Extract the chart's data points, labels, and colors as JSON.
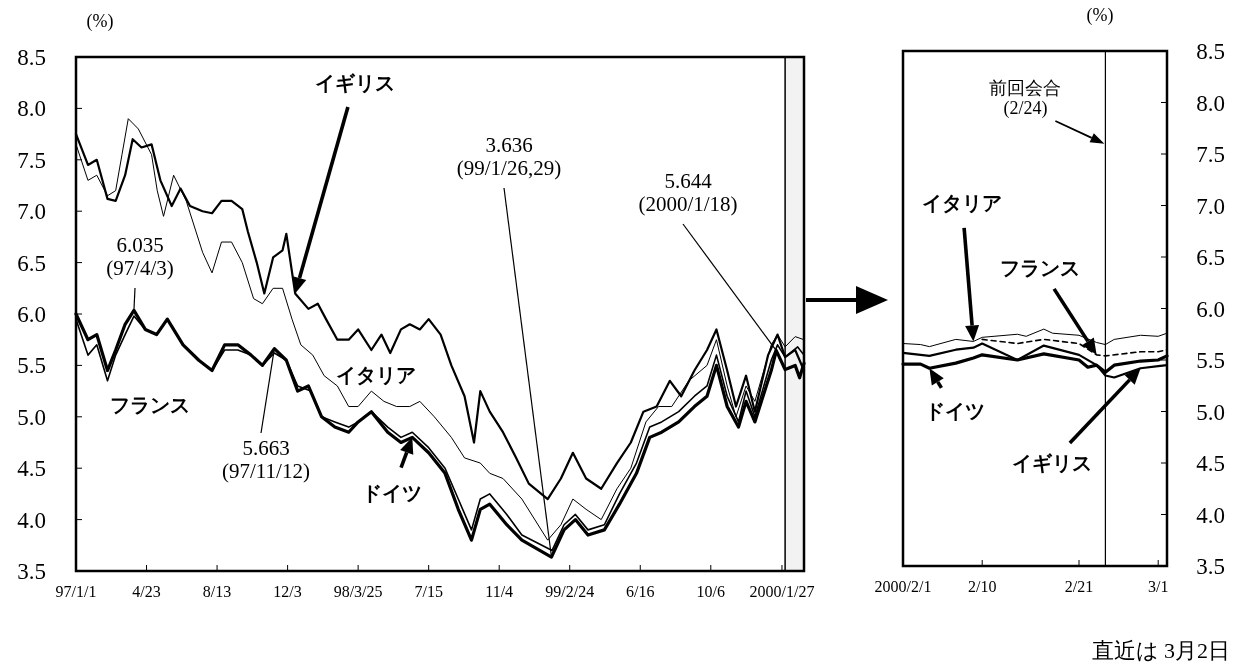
{
  "chart_data": [
    {
      "type": "line",
      "ylabel": "(%)",
      "xlim": [
        "1997-01-01",
        "2000-03-02"
      ],
      "ylim": [
        3.5,
        8.5
      ],
      "xticks": [
        {
          "value": "1997-01-01",
          "label": "97/1/1"
        },
        {
          "value": "1997-04-23",
          "label": "4/23"
        },
        {
          "value": "1997-08-13",
          "label": "8/13"
        },
        {
          "value": "1997-12-03",
          "label": "12/3"
        },
        {
          "value": "1998-03-25",
          "label": "98/3/25"
        },
        {
          "value": "1998-07-15",
          "label": "7/15"
        },
        {
          "value": "1998-11-04",
          "label": "11/4"
        },
        {
          "value": "1999-02-24",
          "label": "99/2/24"
        },
        {
          "value": "1999-06-16",
          "label": "6/16"
        },
        {
          "value": "1999-10-06",
          "label": "10/6"
        },
        {
          "value": "2000-01-27",
          "label": "2000/1/27"
        }
      ],
      "yticks": [
        3.5,
        {
          "value": 4,
          "label": "4.0"
        },
        4.5,
        {
          "value": 5,
          "label": "5.0"
        },
        5.5,
        {
          "value": 6,
          "label": "6.0"
        },
        6.5,
        {
          "value": 7,
          "label": "7.0"
        },
        7.5,
        {
          "value": 8,
          "label": "8.0"
        },
        8.5
      ],
      "grid": false,
      "bands": [
        {
          "axis": "x",
          "from": "2000-02-01",
          "to": "2000-03-02",
          "color": "#f2f2f2"
        }
      ],
      "annotations": [
        {
          "text": "6.035\n(97/4/3)",
          "x": "1997-04-03",
          "y": 6.035
        },
        {
          "text": "5.663\n(97/11/12)",
          "x": "1997-11-12",
          "y": 5.663
        },
        {
          "text": "3.636\n(99/1/26,29)",
          "x": "1999-01-26",
          "y": 3.636
        },
        {
          "text": "5.644\n(2000/1/18)",
          "x": "2000-01-18",
          "y": 5.644
        }
      ],
      "series": [
        {
          "name": "イギリス",
          "color": "#000000",
          "x": [
            "1997-01-01",
            "1997-01-20",
            "1997-02-03",
            "1997-02-20",
            "1997-03-05",
            "1997-03-20",
            "1997-04-01",
            "1997-04-15",
            "1997-05-01",
            "1997-05-15",
            "1997-06-02",
            "1997-06-16",
            "1997-07-01",
            "1997-07-21",
            "1997-08-05",
            "1997-08-20",
            "1997-09-05",
            "1997-09-22",
            "1997-10-01",
            "1997-10-15",
            "1997-10-27",
            "1997-11-10",
            "1997-11-25",
            "1997-12-01",
            "1997-12-15",
            "1998-01-05",
            "1998-01-20",
            "1998-02-02",
            "1998-02-20",
            "1998-03-10",
            "1998-03-25",
            "1998-04-15",
            "1998-05-01",
            "1998-05-15",
            "1998-06-01",
            "1998-06-15",
            "1998-07-01",
            "1998-07-15",
            "1998-08-03",
            "1998-08-20",
            "1998-09-10",
            "1998-09-25",
            "1998-10-05",
            "1998-10-20",
            "1998-11-10",
            "1998-12-01",
            "1998-12-21",
            "1999-01-20",
            "1999-02-10",
            "1999-03-01",
            "1999-03-22",
            "1999-04-15",
            "1999-05-10",
            "1999-06-01",
            "1999-06-21",
            "1999-07-12",
            "1999-08-02",
            "1999-08-20",
            "1999-09-10",
            "1999-09-30",
            "1999-10-15",
            "1999-11-01",
            "1999-11-15",
            "1999-12-01",
            "1999-12-15",
            "2000-01-05",
            "2000-01-20",
            "2000-02-01",
            "2000-02-17",
            "2000-03-02"
          ],
          "values": [
            7.75,
            7.45,
            7.5,
            7.12,
            7.1,
            7.35,
            7.7,
            7.62,
            7.65,
            7.3,
            7.05,
            7.22,
            7.05,
            7.0,
            6.98,
            7.1,
            7.1,
            7.02,
            6.8,
            6.5,
            6.2,
            6.55,
            6.62,
            6.78,
            6.2,
            6.05,
            6.1,
            5.95,
            5.75,
            5.75,
            5.85,
            5.65,
            5.8,
            5.62,
            5.85,
            5.9,
            5.85,
            5.95,
            5.8,
            5.5,
            5.2,
            4.75,
            5.25,
            5.05,
            4.85,
            4.6,
            4.35,
            4.2,
            4.4,
            4.65,
            4.4,
            4.3,
            4.55,
            4.75,
            5.05,
            5.1,
            5.35,
            5.2,
            5.45,
            5.65,
            5.85,
            5.45,
            5.1,
            5.4,
            5.05,
            5.6,
            5.8,
            5.58,
            5.65,
            5.45
          ]
        },
        {
          "name": "イタリア",
          "color": "#000000",
          "x": [
            "1997-01-01",
            "1997-01-20",
            "1997-02-03",
            "1997-02-20",
            "1997-03-05",
            "1997-03-15",
            "1997-03-25",
            "1997-04-10",
            "1997-05-01",
            "1997-05-10",
            "1997-05-20",
            "1997-06-05",
            "1997-06-25",
            "1997-07-21",
            "1997-08-05",
            "1997-08-20",
            "1997-09-05",
            "1997-09-22",
            "1997-10-10",
            "1997-10-24",
            "1997-11-10",
            "1997-11-25",
            "1997-12-10",
            "1997-12-24",
            "1998-01-12",
            "1998-01-30",
            "1998-02-20",
            "1998-03-10",
            "1998-03-25",
            "1998-04-15",
            "1998-05-05",
            "1998-05-25",
            "1998-06-15",
            "1998-07-01",
            "1998-07-24",
            "1998-08-20",
            "1998-09-10",
            "1998-10-05",
            "1998-10-20",
            "1998-11-10",
            "1998-12-10",
            "1999-01-20",
            "1999-02-10",
            "1999-03-01",
            "1999-03-22",
            "1999-04-15",
            "1999-05-10",
            "1999-06-01",
            "1999-06-25",
            "1999-07-15",
            "1999-08-05",
            "1999-09-01",
            "1999-09-30",
            "1999-10-15",
            "1999-11-01",
            "1999-11-15",
            "1999-12-01",
            "1999-12-15",
            "2000-01-10",
            "2000-01-20",
            "2000-02-01",
            "2000-02-17",
            "2000-03-02"
          ],
          "values": [
            7.65,
            7.3,
            7.35,
            7.15,
            7.2,
            7.55,
            7.9,
            7.8,
            7.55,
            7.2,
            6.95,
            7.35,
            7.1,
            6.6,
            6.4,
            6.7,
            6.7,
            6.5,
            6.15,
            6.1,
            6.25,
            6.25,
            5.95,
            5.7,
            5.6,
            5.4,
            5.3,
            5.1,
            5.1,
            5.25,
            5.15,
            5.1,
            5.1,
            5.15,
            5.0,
            4.8,
            4.6,
            4.55,
            4.45,
            4.4,
            4.2,
            3.8,
            3.95,
            4.2,
            4.1,
            4.0,
            4.3,
            4.5,
            4.95,
            5.1,
            5.1,
            5.35,
            5.5,
            5.75,
            5.3,
            5.0,
            5.3,
            5.15,
            5.7,
            5.8,
            5.68,
            5.78,
            5.75
          ]
        },
        {
          "name": "フランス",
          "color": "#000000",
          "x": [
            "1997-01-01",
            "1997-01-20",
            "1997-02-03",
            "1997-02-20",
            "1997-03-05",
            "1997-03-20",
            "1997-04-03",
            "1997-04-21",
            "1997-05-09",
            "1997-05-26",
            "1997-06-20",
            "1997-07-15",
            "1997-08-05",
            "1997-08-25",
            "1997-09-15",
            "1997-10-06",
            "1997-10-24",
            "1997-11-12",
            "1997-12-01",
            "1997-12-19",
            "1998-01-09",
            "1998-01-26",
            "1998-02-16",
            "1998-03-10",
            "1998-03-25",
            "1998-04-15",
            "1998-05-11",
            "1998-06-01",
            "1998-06-19",
            "1998-07-15",
            "1998-08-10",
            "1998-08-31",
            "1998-09-21",
            "1998-10-05",
            "1998-10-20",
            "1998-11-16",
            "1998-12-10",
            "1999-01-27",
            "1999-02-15",
            "1999-03-05",
            "1999-03-25",
            "1999-04-20",
            "1999-05-14",
            "1999-06-10",
            "1999-07-01",
            "1999-07-20",
            "1999-08-16",
            "1999-09-10",
            "1999-09-30",
            "1999-10-15",
            "1999-11-01",
            "1999-11-19",
            "1999-12-01",
            "1999-12-15",
            "2000-01-10",
            "2000-01-20",
            "2000-02-01",
            "2000-02-21",
            "2000-03-02"
          ],
          "values": [
            5.95,
            5.6,
            5.7,
            5.35,
            5.6,
            5.8,
            5.98,
            5.85,
            5.8,
            5.95,
            5.7,
            5.55,
            5.45,
            5.65,
            5.65,
            5.6,
            5.5,
            5.62,
            5.55,
            5.3,
            5.25,
            5.0,
            4.95,
            4.9,
            4.95,
            5.05,
            4.9,
            4.8,
            4.85,
            4.7,
            4.5,
            4.2,
            3.9,
            4.2,
            4.25,
            4.05,
            3.85,
            3.7,
            3.95,
            4.05,
            3.9,
            3.95,
            4.25,
            4.55,
            4.9,
            4.95,
            5.05,
            5.2,
            5.3,
            5.6,
            5.2,
            4.95,
            5.25,
            5.0,
            5.55,
            5.7,
            5.58,
            5.68,
            5.6
          ]
        },
        {
          "name": "ドイツ",
          "color": "#000000",
          "x": [
            "1997-01-01",
            "1997-01-20",
            "1997-02-03",
            "1997-02-20",
            "1997-03-05",
            "1997-03-20",
            "1997-04-03",
            "1997-04-21",
            "1997-05-09",
            "1997-05-26",
            "1997-06-20",
            "1997-07-15",
            "1997-08-05",
            "1997-08-25",
            "1997-09-15",
            "1997-10-06",
            "1997-10-24",
            "1997-11-12",
            "1997-12-01",
            "1997-12-19",
            "1998-01-05",
            "1998-01-26",
            "1998-02-16",
            "1998-03-10",
            "1998-03-25",
            "1998-04-15",
            "1998-05-11",
            "1998-06-01",
            "1998-06-19",
            "1998-07-15",
            "1998-08-10",
            "1998-08-31",
            "1998-09-21",
            "1998-10-05",
            "1998-10-20",
            "1998-11-16",
            "1998-12-10",
            "1999-01-26",
            "1999-02-15",
            "1999-03-05",
            "1999-03-25",
            "1999-04-20",
            "1999-05-14",
            "1999-06-10",
            "1999-07-01",
            "1999-07-20",
            "1999-08-16",
            "1999-09-10",
            "1999-09-30",
            "1999-10-15",
            "1999-11-01",
            "1999-11-19",
            "1999-12-01",
            "1999-12-15",
            "2000-01-10",
            "2000-01-18",
            "2000-02-01",
            "2000-02-17",
            "2000-02-24",
            "2000-03-02"
          ],
          "values": [
            6.0,
            5.75,
            5.8,
            5.45,
            5.65,
            5.9,
            6.035,
            5.85,
            5.8,
            5.95,
            5.7,
            5.55,
            5.45,
            5.7,
            5.7,
            5.6,
            5.5,
            5.663,
            5.55,
            5.25,
            5.3,
            5.0,
            4.9,
            4.85,
            4.95,
            5.05,
            4.85,
            4.75,
            4.8,
            4.65,
            4.45,
            4.1,
            3.8,
            4.1,
            4.15,
            3.95,
            3.8,
            3.636,
            3.9,
            4.0,
            3.85,
            3.9,
            4.15,
            4.45,
            4.8,
            4.85,
            4.95,
            5.1,
            5.2,
            5.5,
            5.1,
            4.9,
            5.15,
            4.95,
            5.45,
            5.644,
            5.46,
            5.5,
            5.38,
            5.52
          ]
        }
      ]
    },
    {
      "type": "line",
      "ylabel": "(%)",
      "xlim": [
        "2000-02-01",
        "2000-03-02"
      ],
      "ylim": [
        3.5,
        8.5
      ],
      "xticks": [
        {
          "value": "2000-02-01",
          "label": "2000/2/1"
        },
        {
          "value": "2000-02-10",
          "label": "2/10"
        },
        {
          "value": "2000-02-21",
          "label": "2/21"
        },
        {
          "value": "2000-03-01",
          "label": "3/1"
        }
      ],
      "yticks": [
        3.5,
        {
          "value": 4,
          "label": "4.0"
        },
        4.5,
        {
          "value": 5,
          "label": "5.0"
        },
        5.5,
        {
          "value": 6,
          "label": "6.0"
        },
        6.5,
        {
          "value": 7,
          "label": "7.0"
        },
        7.5,
        {
          "value": 8,
          "label": "8.0"
        },
        8.5
      ],
      "grid": false,
      "ref_lines": [
        {
          "axis": "x",
          "value": "2000-02-24",
          "label": "前回会合\n(2/24)"
        }
      ],
      "annotations": [
        "直近は 3月2日"
      ],
      "series": [
        {
          "name": "イギリス",
          "color": "#000000",
          "x": [
            "2000-02-01",
            "2000-02-04",
            "2000-02-07",
            "2000-02-09",
            "2000-02-10",
            "2000-02-14",
            "2000-02-17",
            "2000-02-21",
            "2000-02-23",
            "2000-02-24",
            "2000-02-25",
            "2000-02-28",
            "2000-03-01",
            "2000-03-02"
          ],
          "values": [
            5.57,
            5.54,
            5.6,
            5.62,
            5.66,
            5.5,
            5.64,
            5.55,
            5.45,
            5.35,
            5.33,
            5.42,
            5.44,
            5.45
          ]
        },
        {
          "name": "イタリア",
          "color": "#000000",
          "x": [
            "2000-02-01",
            "2000-02-03",
            "2000-02-04",
            "2000-02-07",
            "2000-02-09",
            "2000-02-10",
            "2000-02-14",
            "2000-02-15",
            "2000-02-17",
            "2000-02-18",
            "2000-02-21",
            "2000-02-23",
            "2000-02-24",
            "2000-02-25",
            "2000-02-28",
            "2000-03-01",
            "2000-03-02"
          ],
          "values": [
            5.66,
            5.65,
            5.63,
            5.7,
            5.68,
            5.72,
            5.75,
            5.73,
            5.8,
            5.76,
            5.74,
            5.67,
            5.65,
            5.7,
            5.74,
            5.73,
            5.76
          ]
        },
        {
          "name": "フランス",
          "color": "#000000",
          "line_style": "dashed",
          "x": [
            "2000-02-10",
            "2000-02-14",
            "2000-02-17",
            "2000-02-21",
            "2000-02-23",
            "2000-02-24",
            "2000-02-28",
            "2000-03-01",
            "2000-03-02"
          ],
          "values": [
            5.7,
            5.66,
            5.7,
            5.66,
            5.55,
            5.54,
            5.58,
            5.58,
            5.6
          ]
        },
        {
          "name": "ドイツ",
          "color": "#000000",
          "x": [
            "2000-02-01",
            "2000-02-03",
            "2000-02-04",
            "2000-02-07",
            "2000-02-09",
            "2000-02-10",
            "2000-02-14",
            "2000-02-17",
            "2000-02-21",
            "2000-02-22",
            "2000-02-23",
            "2000-02-24",
            "2000-02-25",
            "2000-02-28",
            "2000-03-01",
            "2000-03-02"
          ],
          "values": [
            5.46,
            5.46,
            5.42,
            5.47,
            5.52,
            5.55,
            5.5,
            5.56,
            5.5,
            5.43,
            5.45,
            5.38,
            5.45,
            5.49,
            5.5,
            5.54
          ]
        }
      ]
    }
  ]
}
